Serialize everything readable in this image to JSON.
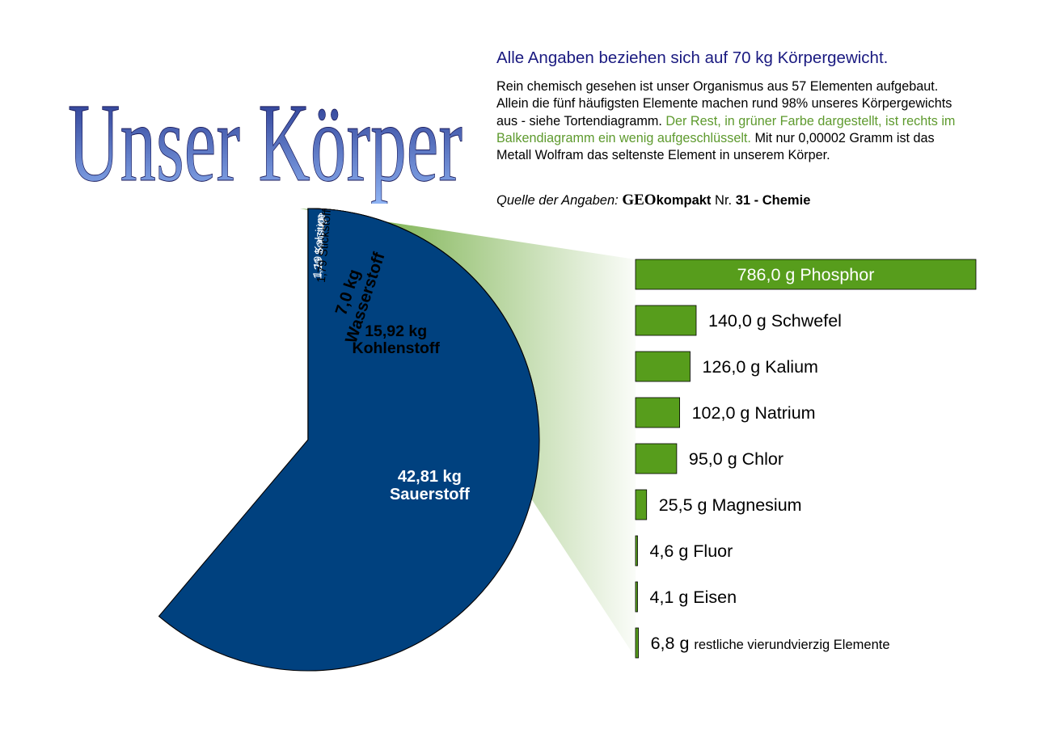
{
  "title": "Unser Körper",
  "intro": {
    "headline": "Alle Angaben beziehen sich auf 70 kg Körpergewicht.",
    "part1": "Rein chemisch gesehen ist unser Organismus aus 57 Elementen aufgebaut. Allein die fünf häufigsten Elemente machen rund 98% unseres Körpergewichts aus - siehe Tortendiagramm.",
    "part2_green": "Der Rest, in grüner Farbe dargestellt, ist rechts im Balkendiagramm ein wenig aufgeschlüsselt.",
    "part3": "Mit nur 0,00002 Gramm ist das Metall Wolfram das seltenste Element in unserem Körper."
  },
  "source": {
    "prefix": "Quelle der Angaben:",
    "brand_geo": "GEO",
    "brand_kompakt": "kompakt",
    "nr_label": "Nr.",
    "number": "31",
    "dash": "-",
    "topic": "Chemie"
  },
  "colors": {
    "sauerstoff": "#00417f",
    "kohlenstoff": "#83caff",
    "kalzium": "#7e0021",
    "sonstige": "#579d1c",
    "stickstoff": "#ffd320",
    "wasserstoff": "#ff420e",
    "bar": "#579d1c",
    "title_top": "#1e2c86",
    "title_bottom": "#8fb4f4"
  },
  "chart_data": [
    {
      "type": "pie",
      "unit": "kg",
      "slices": [
        {
          "key": "kohlenstoff",
          "value": 15.92,
          "label_value": "15,92 kg",
          "label_name": "Kohlenstoff"
        },
        {
          "key": "kalzium",
          "value": 1.19,
          "label_value": "1,19",
          "label_name": "Kalzium"
        },
        {
          "key": "sonstige",
          "value": 1.29,
          "label_value": "1,29",
          "label_name": "Sonstige"
        },
        {
          "key": "stickstoff",
          "value": 1.79,
          "label_value": "1,79",
          "label_name": "Stickstoff"
        },
        {
          "key": "wasserstoff",
          "value": 7.0,
          "label_value": "7,0 kg",
          "label_name": "Wasserstoff"
        },
        {
          "key": "sauerstoff",
          "value": 42.81,
          "label_value": "42,81 kg",
          "label_name": "Sauerstoff"
        }
      ]
    },
    {
      "type": "bar",
      "orientation": "horizontal",
      "unit": "g",
      "bars": [
        {
          "value": 786.0,
          "value_label": "786,0 g",
          "name": "Phosphor"
        },
        {
          "value": 140.0,
          "value_label": "140,0 g",
          "name": "Schwefel"
        },
        {
          "value": 126.0,
          "value_label": "126,0 g",
          "name": "Kalium"
        },
        {
          "value": 102.0,
          "value_label": "102,0 g",
          "name": "Natrium"
        },
        {
          "value": 95.0,
          "value_label": "95,0 g",
          "name": "Chlor"
        },
        {
          "value": 25.5,
          "value_label": "25,5 g",
          "name": "Magnesium"
        },
        {
          "value": 4.6,
          "value_label": "4,6 g",
          "name": "Fluor"
        },
        {
          "value": 4.1,
          "value_label": "4,1 g",
          "name": "Eisen"
        },
        {
          "value": 6.8,
          "value_label": "6,8 g",
          "name": "restliche vierundvierzig Elemente"
        }
      ]
    }
  ]
}
